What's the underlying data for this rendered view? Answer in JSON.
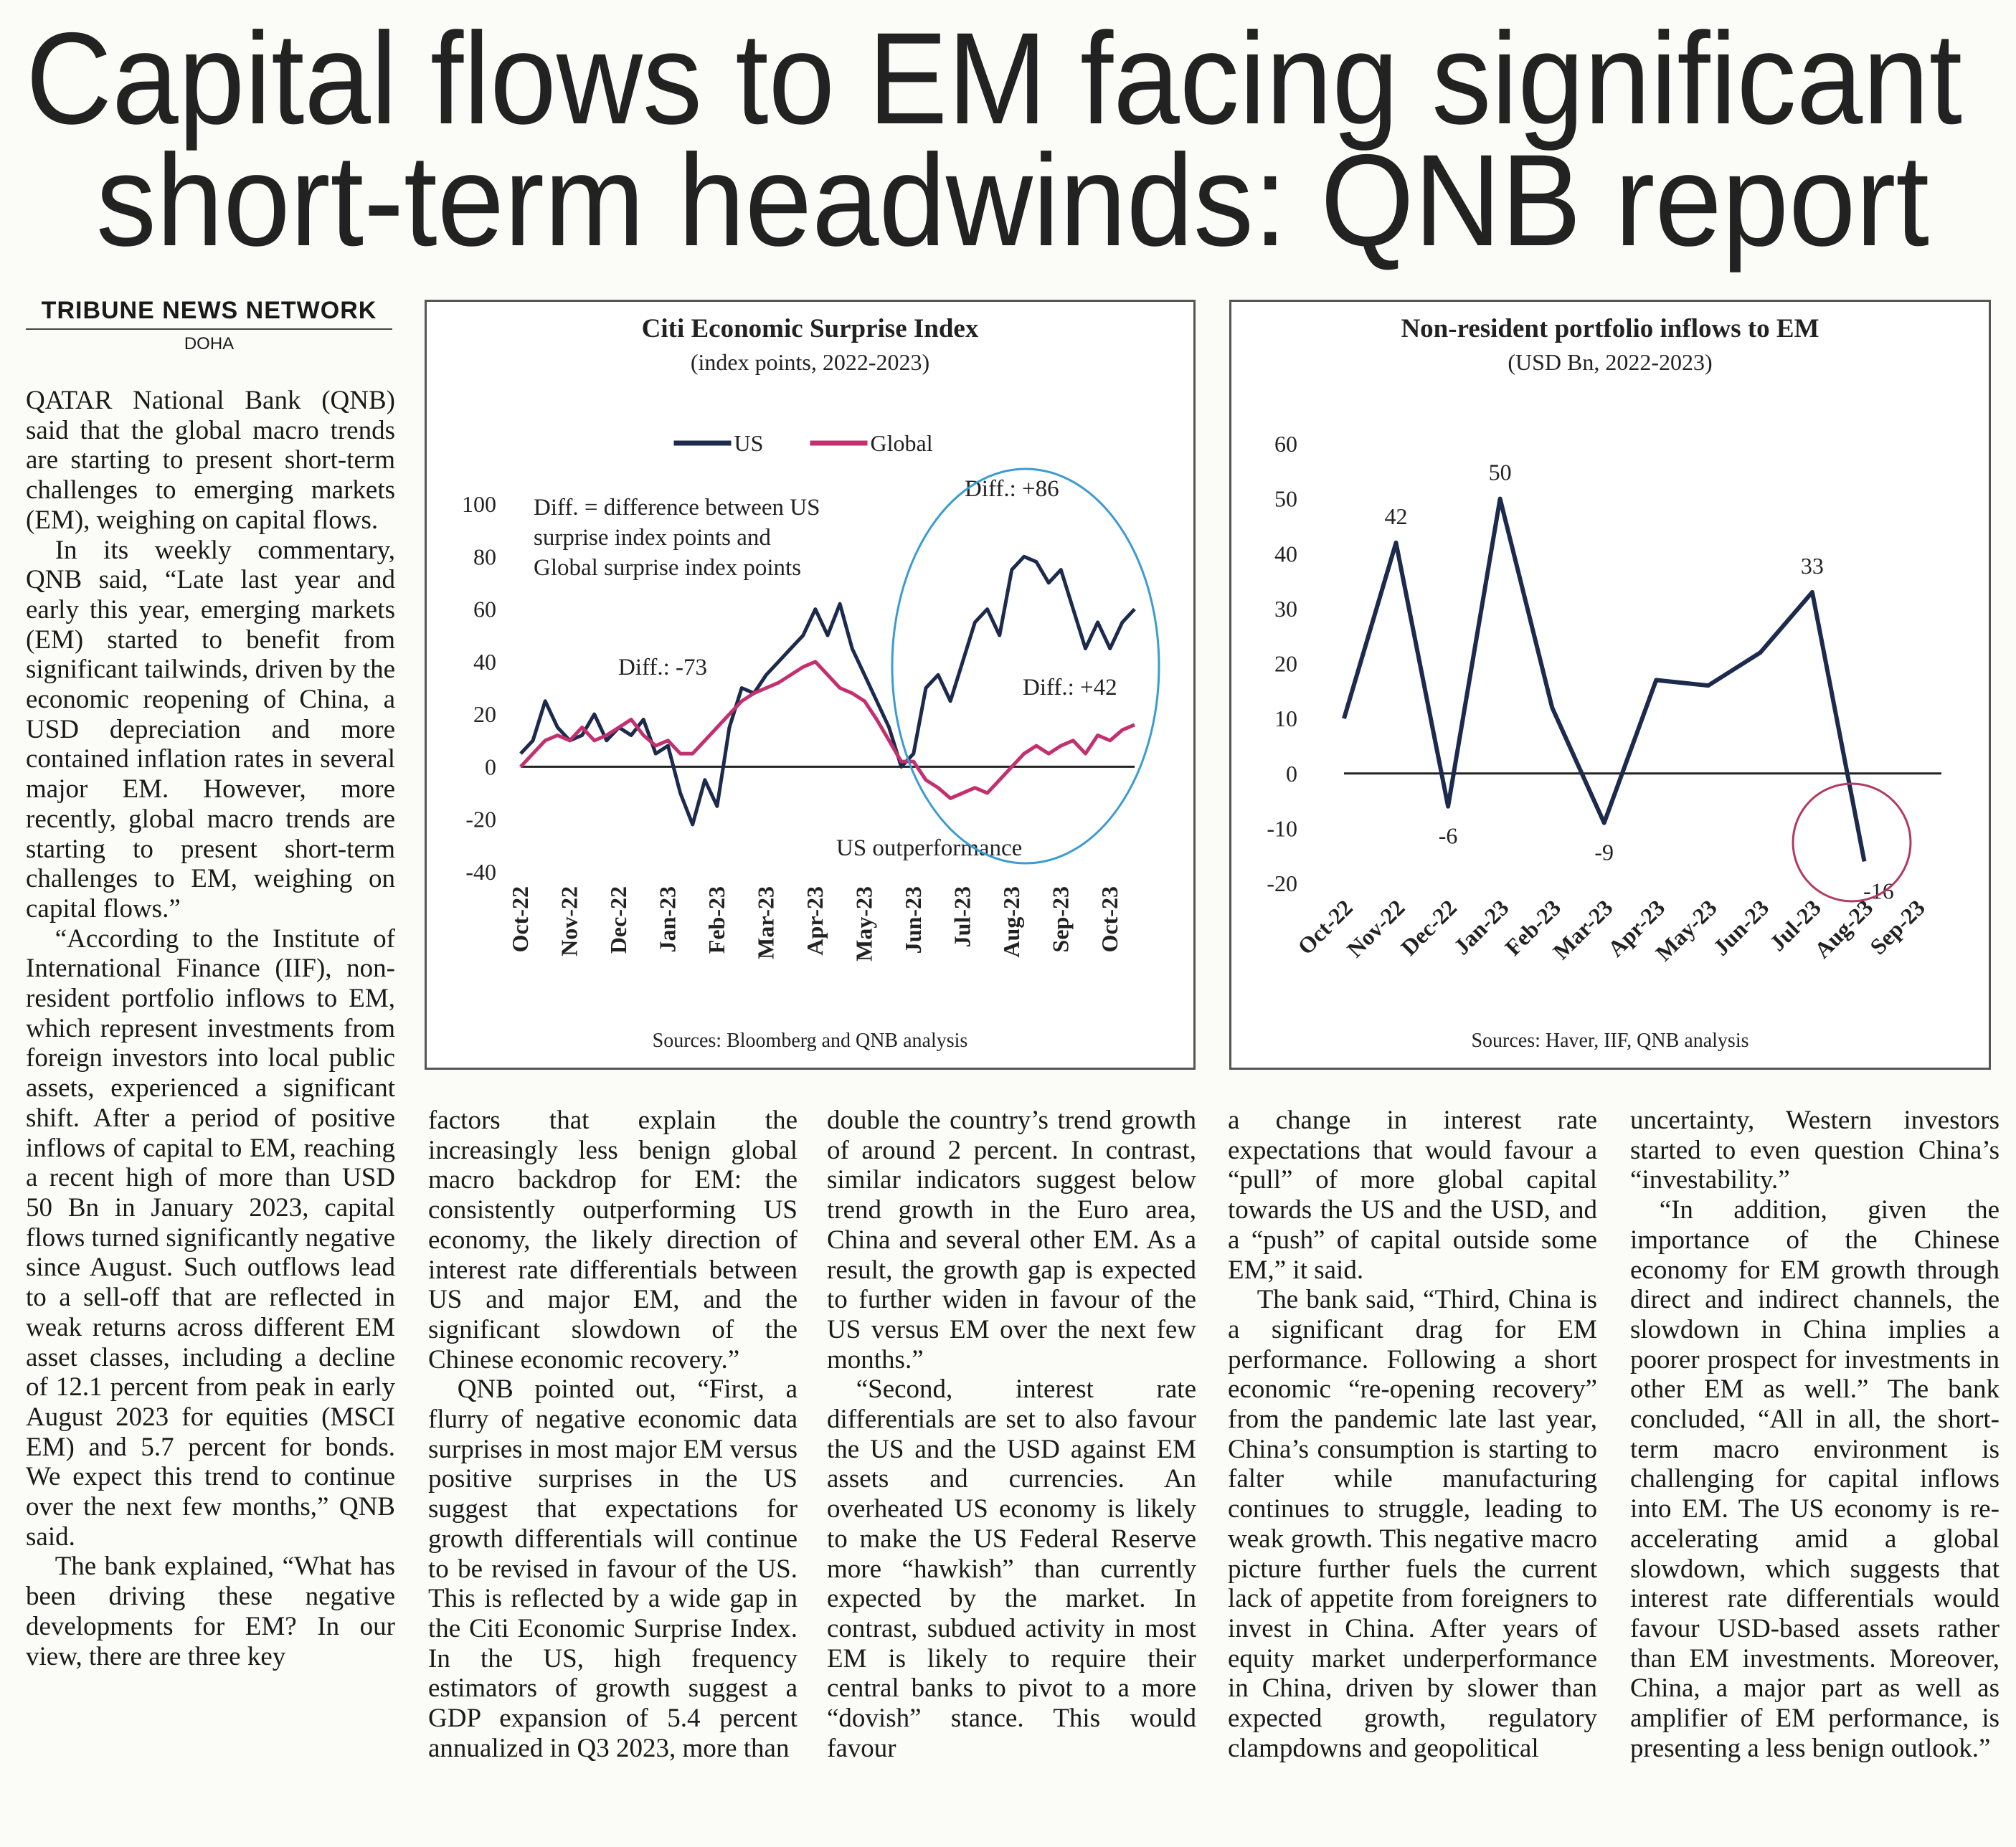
{
  "headline": [
    "Capital flows to EM facing significant",
    "short-term headwinds: QNB report"
  ],
  "byline": "TRIBUNE NEWS NETWORK",
  "dateline": "DOHA",
  "columns": [
    [
      "QATAR National Bank (QNB) said that the global macro trends are starting to present short-term challenges to emerging markets (EM), weighing on capital flows.",
      "In its weekly commentary, QNB said, “Late last year and early this year, emerging markets (EM) started to benefit from significant tailwinds, driven by the economic reopening of China, a USD depreciation and more contained inflation rates in several major EM. However, more recently, global macro trends are starting to present short-term challenges to EM, weighing on capital flows.”",
      "“According to the Institute of International Finance (IIF), non-resident portfolio inflows to EM, which represent investments from foreign investors into local public assets, experienced a significant shift. After a period of positive inflows of capital to EM, reaching a recent high of more than USD 50 Bn in January 2023, capital flows turned significantly negative since August. Such outflows lead to a sell-off that are reflected in weak returns across different EM asset classes, including a decline of 12.1 percent from peak in early August 2023 for equities (MSCI EM) and 5.7 percent for bonds. We expect this trend to continue over the next few months,” QNB said.",
      "The bank explained, “What has been driving these negative developments for EM? In our view, there are three key"
    ],
    [
      "factors that explain the increasingly less benign global macro backdrop for EM: the consistently outperforming US economy, the likely direction of interest rate differentials between US and major EM, and the significant slowdown of the Chinese economic recovery.”",
      "QNB pointed out, “First, a flurry of negative economic data surprises in most major EM versus positive surprises in the US suggest that expectations for growth differentials will continue to be revised in favour of the US. This is reflected by a wide gap in the Citi Economic Surprise Index. In the US, high frequency estimators of growth suggest a GDP expansion of 5.4 percent annualized in Q3 2023, more than"
    ],
    [
      "double the country’s trend growth of around 2 percent. In contrast, similar indicators suggest below trend growth in the Euro area, China and several other EM. As a result, the growth gap is expected to further widen in favour of the US versus EM over the next few months.”",
      "“Second, interest rate differentials are set to also favour the US and the USD against EM assets and currencies. An overheated US economy is likely to make the US Federal Reserve more “hawkish” than currently expected by the market. In contrast, subdued activity in most EM is likely to require their central banks to pivot to a more “dovish” stance. This would favour"
    ],
    [
      "a change in interest rate expectations that would favour a “pull” of more global capital towards the US and the USD, and a “push” of capital outside some EM,” it said.",
      "The bank said, “Third, China is a significant drag for EM performance. Following a short economic “re-opening recovery” from the pandemic late last year, China’s consumption is starting to falter while manufacturing continues to struggle, leading to weak growth. This negative macro picture further fuels the current lack of appetite from foreigners to invest in China. After years of equity market underperformance in China, driven by slower than expected growth, regulatory clampdowns and geopolitical"
    ],
    [
      "uncertainty, Western investors started to even question China’s “investability.”",
      "“In addition, given the importance of the Chinese economy for EM growth through direct and indirect channels, the slowdown in China implies a poorer prospect for investments in other EM as well.” The bank concluded, “All in all, the short-term macro environment is challenging for capital inflows into EM. The US economy is re-accelerating amid a global slowdown, which suggests that interest rate differentials would favour USD-based assets rather than EM investments. Moreover, China, a major part as well as amplifier of EM performance, is presenting a less benign outlook.”"
    ]
  ],
  "chart_data": [
    {
      "type": "line",
      "title": "Citi Economic Surprise Index",
      "subtitle": "(index points, 2022-2023)",
      "categories": [
        "Oct-22",
        null,
        null,
        null,
        "Nov-22",
        null,
        null,
        null,
        "Dec-22",
        null,
        null,
        null,
        "Jan-23",
        null,
        null,
        null,
        "Feb-23",
        null,
        null,
        null,
        "Mar-23",
        null,
        null,
        null,
        "Apr-23",
        null,
        null,
        null,
        "May-23",
        null,
        null,
        null,
        "Jun-23",
        null,
        null,
        null,
        "Jul-23",
        null,
        null,
        null,
        "Aug-23",
        null,
        null,
        null,
        "Sep-23",
        null,
        null,
        null,
        "Oct-23",
        null,
        null
      ],
      "series": [
        {
          "name": "US",
          "color": "#1c2a4d",
          "values": [
            5,
            10,
            25,
            15,
            10,
            12,
            20,
            10,
            15,
            12,
            18,
            5,
            8,
            -10,
            -22,
            -5,
            -15,
            15,
            30,
            28,
            35,
            40,
            45,
            50,
            60,
            50,
            62,
            45,
            35,
            25,
            15,
            0,
            5,
            30,
            35,
            25,
            40,
            55,
            60,
            50,
            75,
            80,
            78,
            70,
            75,
            60,
            45,
            55,
            45,
            55,
            60
          ]
        },
        {
          "name": "Global",
          "color": "#c2306e",
          "values": [
            0,
            5,
            10,
            12,
            10,
            15,
            10,
            12,
            15,
            18,
            12,
            8,
            10,
            5,
            5,
            10,
            15,
            20,
            25,
            28,
            30,
            32,
            35,
            38,
            40,
            35,
            30,
            28,
            25,
            18,
            10,
            2,
            2,
            -5,
            -8,
            -12,
            -10,
            -8,
            -10,
            -5,
            0,
            5,
            8,
            5,
            8,
            10,
            5,
            12,
            10,
            14,
            16
          ]
        }
      ],
      "ylim": [
        -40,
        100
      ],
      "yticks": [
        -40,
        -20,
        0,
        20,
        40,
        60,
        80,
        100
      ],
      "legend": "top",
      "annotations": [
        "Diff. = difference between US",
        "surprise index points and",
        "Global surprise index points",
        "Diff.: -73",
        "Diff.: +86",
        "Diff.: +42",
        "US outperformance"
      ],
      "source": "Sources: Bloomberg and QNB analysis"
    },
    {
      "type": "line",
      "title": "Non-resident portfolio inflows to EM",
      "subtitle": "(USD Bn, 2022-2023)",
      "categories": [
        "Oct-22",
        "Nov-22",
        "Dec-22",
        "Jan-23",
        "Feb-23",
        "Mar-23",
        "Apr-23",
        "May-23",
        "Jun-23",
        "Jul-23",
        "Aug-23",
        "Sep-23"
      ],
      "values": [
        10,
        42,
        -6,
        50,
        12,
        -9,
        17,
        16,
        22,
        33,
        -16,
        null
      ],
      "value_labels": [
        null,
        "42",
        "-6",
        "50",
        null,
        "-9",
        null,
        null,
        null,
        "33",
        "-16",
        null
      ],
      "color": "#1c2a4d",
      "ylim": [
        -20,
        60
      ],
      "yticks": [
        -20,
        -10,
        0,
        10,
        20,
        30,
        40,
        50,
        60
      ],
      "source": "Sources: Haver, IIF, QNB analysis"
    }
  ]
}
